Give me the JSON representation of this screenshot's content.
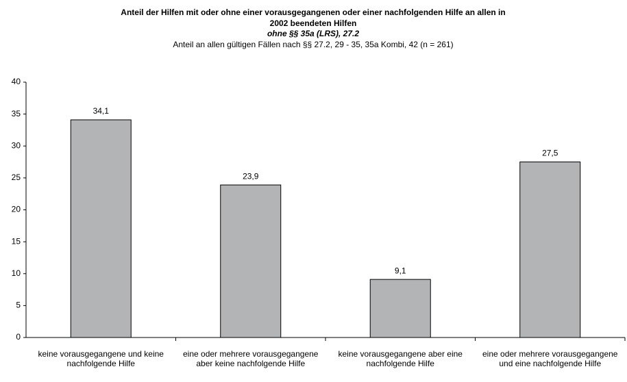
{
  "chart_data": {
    "type": "bar",
    "title": [
      "Anteil der Hilfen mit oder ohne einer vorausgegangenen oder einer nachfolgenden Hilfe an allen in",
      "2002 beendeten Hilfen"
    ],
    "subtitle": "ohne §§ 35a (LRS), 27.2",
    "note": "Anteil an allen gültigen Fällen nach §§ 27.2, 29 - 35, 35a Kombi, 42 (n = 261)",
    "categories": [
      "keine vorausgegangene und keine nachfolgende Hilfe",
      "eine oder mehrere vorausgegangene aber keine nachfolgende Hilfe",
      "keine vorausgegangene aber eine nachfolgende Hilfe",
      "eine oder mehrere vorausgegangene und eine nachfolgende Hilfe"
    ],
    "values": [
      34.1,
      23.9,
      9.1,
      27.5
    ],
    "value_labels": [
      "34,1",
      "23,9",
      "9,1",
      "27,5"
    ],
    "color": "#b3b4b6",
    "ylim": [
      0,
      40
    ],
    "yticks": [
      0,
      5,
      10,
      15,
      20,
      25,
      30,
      35,
      40
    ],
    "grid": false
  }
}
